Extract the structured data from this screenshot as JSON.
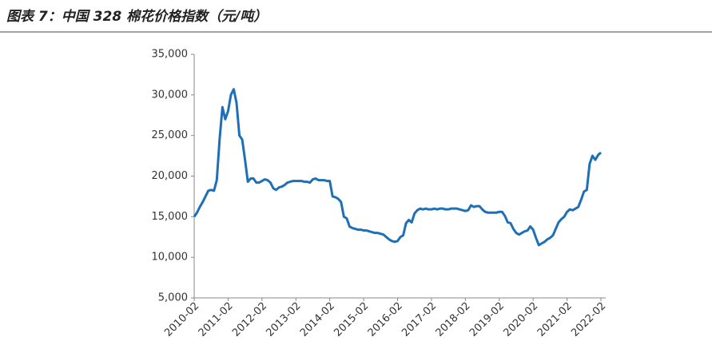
{
  "chart_data": {
    "type": "line",
    "title": "图表 7：中国 328 棉花价格指数（元/吨）",
    "categories": [
      "2010-02",
      null,
      null,
      null,
      null,
      null,
      null,
      null,
      null,
      null,
      null,
      null,
      "2011-02",
      null,
      null,
      null,
      null,
      null,
      null,
      null,
      null,
      null,
      null,
      null,
      "2012-02",
      null,
      null,
      null,
      null,
      null,
      null,
      null,
      null,
      null,
      null,
      null,
      "2013-02",
      null,
      null,
      null,
      null,
      null,
      null,
      null,
      null,
      null,
      null,
      null,
      "2014-02",
      null,
      null,
      null,
      null,
      null,
      null,
      null,
      null,
      null,
      null,
      null,
      "2015-02",
      null,
      null,
      null,
      null,
      null,
      null,
      null,
      null,
      null,
      null,
      null,
      "2016-02",
      null,
      null,
      null,
      null,
      null,
      null,
      null,
      null,
      null,
      null,
      null,
      "2017-02",
      null,
      null,
      null,
      null,
      null,
      null,
      null,
      null,
      null,
      null,
      null,
      "2018-02",
      null,
      null,
      null,
      null,
      null,
      null,
      null,
      null,
      null,
      null,
      null,
      "2019-02",
      null,
      null,
      null,
      null,
      null,
      null,
      null,
      null,
      null,
      null,
      null,
      "2020-02",
      null,
      null,
      null,
      null,
      null,
      null,
      null,
      null,
      null,
      null,
      null,
      "2021-02",
      null,
      null,
      null,
      null,
      null,
      null,
      null,
      null,
      null,
      null,
      null,
      "2022-02"
    ],
    "values": [
      15000,
      15500,
      16200,
      16800,
      17500,
      18200,
      18300,
      18200,
      19500,
      24500,
      28500,
      27000,
      28000,
      30000,
      30700,
      29000,
      25000,
      24500,
      22000,
      19300,
      19700,
      19700,
      19200,
      19200,
      19400,
      19600,
      19500,
      19200,
      18500,
      18300,
      18600,
      18700,
      18900,
      19200,
      19300,
      19400,
      19400,
      19400,
      19400,
      19300,
      19300,
      19200,
      19600,
      19700,
      19500,
      19500,
      19500,
      19400,
      19400,
      17500,
      17400,
      17200,
      16800,
      15000,
      14800,
      13800,
      13600,
      13500,
      13400,
      13400,
      13300,
      13300,
      13200,
      13100,
      13000,
      13000,
      12900,
      12800,
      12500,
      12200,
      12000,
      11900,
      12000,
      12500,
      12700,
      14200,
      14600,
      14300,
      15400,
      15800,
      16000,
      15900,
      16000,
      15900,
      15900,
      16000,
      15900,
      16000,
      16000,
      15900,
      15900,
      16000,
      16000,
      16000,
      15900,
      15800,
      15700,
      15800,
      16400,
      16200,
      16300,
      16300,
      15900,
      15600,
      15500,
      15500,
      15500,
      15500,
      15600,
      15600,
      15100,
      14300,
      14200,
      13500,
      13000,
      12800,
      13000,
      13200,
      13300,
      13800,
      13400,
      12400,
      11500,
      11700,
      11900,
      12200,
      12400,
      12700,
      13500,
      14300,
      14700,
      15000,
      15600,
      15900,
      15800,
      16000,
      16200,
      17100,
      18100,
      18300,
      21500,
      22500,
      22000,
      22600,
      22900
    ],
    "color": "#1f6fb6",
    "ylim": [
      5000,
      35000
    ],
    "yticks": [
      {
        "value": 5000,
        "label": "5,000"
      },
      {
        "value": 10000,
        "label": "10,000"
      },
      {
        "value": 15000,
        "label": "15,000"
      },
      {
        "value": 20000,
        "label": "20,000"
      },
      {
        "value": 25000,
        "label": "25,000"
      },
      {
        "value": 30000,
        "label": "30,000"
      },
      {
        "value": 35000,
        "label": "35,000"
      }
    ],
    "grid": false
  }
}
